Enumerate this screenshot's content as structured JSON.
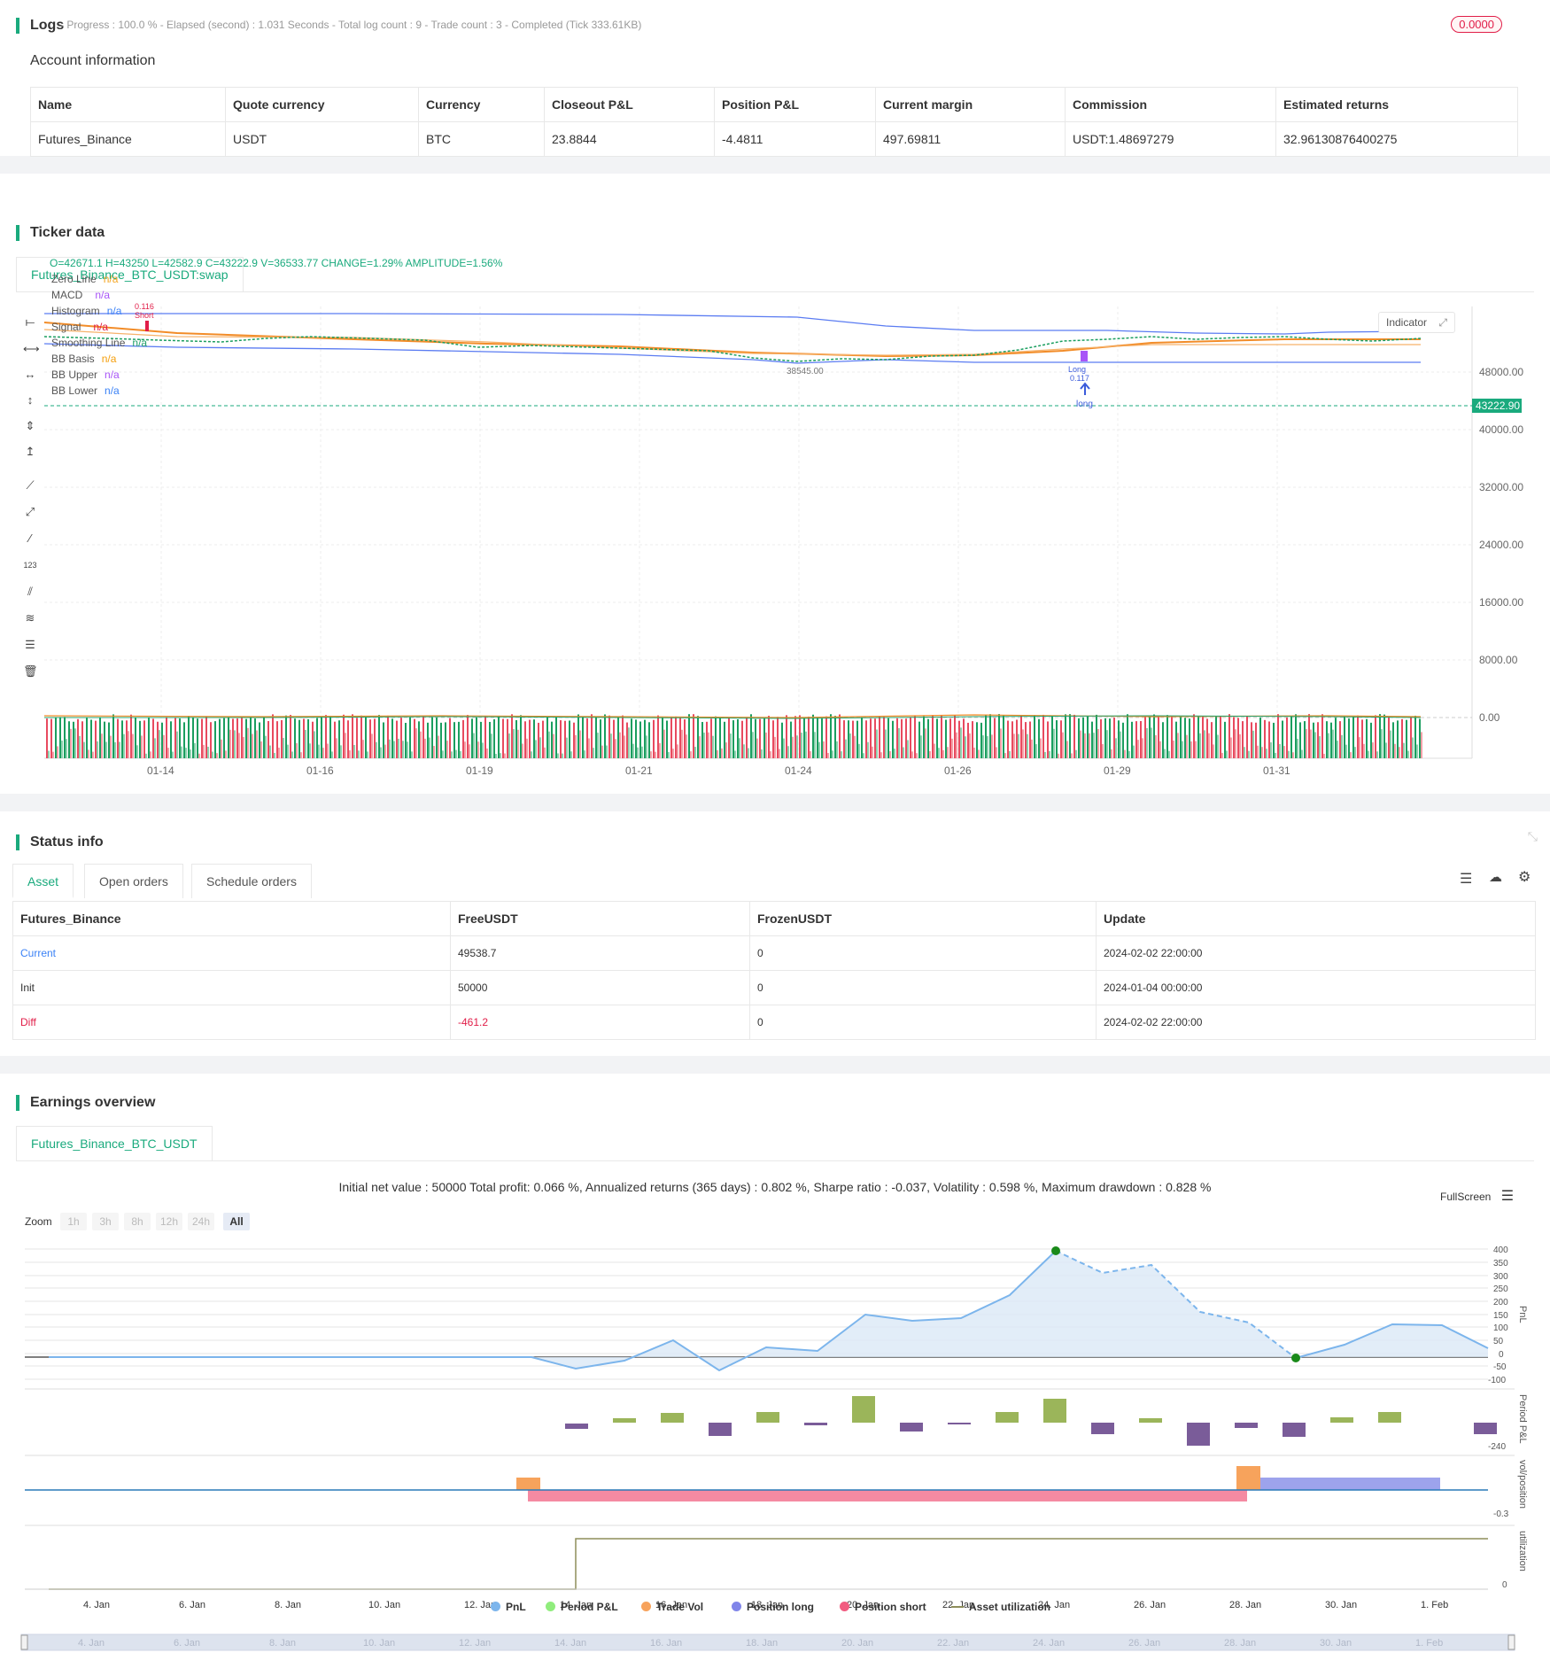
{
  "logs": {
    "title": "Logs",
    "summary": "- Progress : 100.0 % - Elapsed (second) : 1.031  Seconds - Total log count : 9 - Trade count : 3 - Completed (Tick 333.61KB)",
    "badge": "0.0000"
  },
  "account": {
    "title": "Account information",
    "headers": [
      "Name",
      "Quote currency",
      "Currency",
      "Closeout P&L",
      "Position P&L",
      "Current margin",
      "Commission",
      "Estimated returns"
    ],
    "row": [
      "Futures_Binance",
      "USDT",
      "BTC",
      "23.8844",
      "-4.4811",
      "497.69811",
      "USDT:1.48697279",
      "32.96130876400275"
    ]
  },
  "ticker": {
    "title": "Ticker data",
    "tab": "Futures_Binance_BTC_USDT:swap",
    "ohlc": "O=42671.1 H=43250 L=42582.9 C=43222.9 V=36533.77 CHANGE=1.29% AMPLITUDE=1.56%",
    "indicator_btn": "Indicator",
    "legend": [
      {
        "name": "Zero Line",
        "value": "n/a",
        "color": "#f5a623"
      },
      {
        "name": "MACD",
        "value": "n/a",
        "color": "#a855f7"
      },
      {
        "name": "Histogram",
        "value": "n/a",
        "color": "#3b82f6"
      },
      {
        "name": "Signal",
        "value": "n/a",
        "color": "#e11d48"
      },
      {
        "name": "Smoothing Line",
        "value": "n/a",
        "color": "#22a06b"
      },
      {
        "name": "BB Basis",
        "value": "n/a",
        "color": "#f59e0b"
      },
      {
        "name": "BB Upper",
        "value": "n/a",
        "color": "#a855f7"
      },
      {
        "name": "BB Lower",
        "value": "n/a",
        "color": "#3b82f6"
      }
    ],
    "price_labels": [
      "48000.00",
      "40000.00",
      "32000.00",
      "24000.00",
      "16000.00",
      "8000.00",
      "0.00"
    ],
    "current_price": "43222.90",
    "dates": [
      "01-14",
      "01-16",
      "01-19",
      "01-21",
      "01-24",
      "01-26",
      "01-29",
      "01-31"
    ],
    "annotations": {
      "short_qty": "0.116",
      "short_label": "Short",
      "low_label": "38545.00",
      "long_label": "Long",
      "long_qty": "0.117",
      "long_arrow_label": "long"
    }
  },
  "status": {
    "title": "Status info",
    "tabs": [
      "Asset",
      "Open orders",
      "Schedule orders"
    ],
    "headers": [
      "Futures_Binance",
      "FreeUSDT",
      "FrozenUSDT",
      "Update"
    ],
    "rows": [
      [
        "Current",
        "49538.7",
        "0",
        "2024-02-02 22:00:00"
      ],
      [
        "Init",
        "50000",
        "0",
        "2024-01-04 00:00:00"
      ],
      [
        "Diff",
        "-461.2",
        "0",
        "2024-02-02 22:00:00"
      ]
    ]
  },
  "earnings": {
    "title": "Earnings overview",
    "tab": "Futures_Binance_BTC_USDT",
    "summary": "Initial net value : 50000  Total profit: 0.066 %, Annualized returns (365 days) : 0.802 %, Sharpe ratio : -0.037, Volatility : 0.598 %, Maximum drawdown : 0.828 %",
    "fullscreen": "FullScreen",
    "zoom_label": "Zoom",
    "zoom_options": [
      "1h",
      "3h",
      "8h",
      "12h",
      "24h",
      "All"
    ],
    "pnl_axis": [
      "400",
      "350",
      "300",
      "250",
      "200",
      "150",
      "100",
      "50",
      "0",
      "-50",
      "-100"
    ],
    "pnl_title": "PnL",
    "period_title": "Period P&L",
    "period_min": "-240",
    "vol_title": "vol/position",
    "vol_min": "-0.3",
    "util_title": "utilization",
    "util_zero": "0",
    "x_dates": [
      "4. Jan",
      "6. Jan",
      "8. Jan",
      "10. Jan",
      "12. Jan",
      "14. Jan",
      "16. Jan",
      "18. Jan",
      "20. Jan",
      "22. Jan",
      "24. Jan",
      "26. Jan",
      "28. Jan",
      "30. Jan",
      "1. Feb"
    ],
    "legend": [
      {
        "name": "PnL",
        "color": "#7cb5ec"
      },
      {
        "name": "Period P&L",
        "color": "#90ed7d"
      },
      {
        "name": "Trade Vol",
        "color": "#f7a35c"
      },
      {
        "name": "Position long",
        "color": "#8085e9"
      },
      {
        "name": "Position short",
        "color": "#f15c80"
      },
      {
        "name": "Asset utilization",
        "color": "#8d8d5a"
      }
    ]
  }
}
